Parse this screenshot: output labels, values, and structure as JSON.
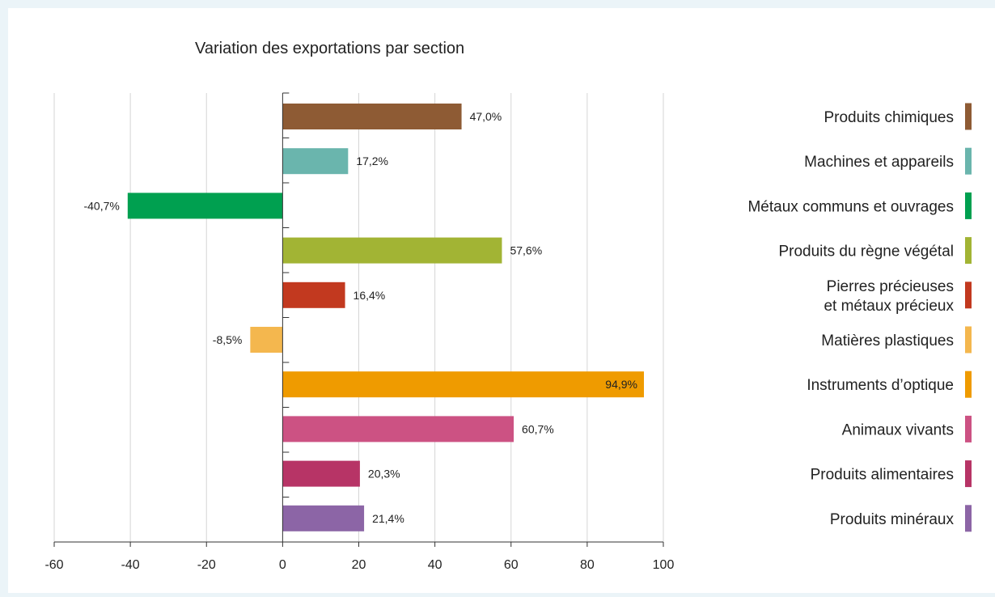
{
  "chart_data": {
    "type": "bar",
    "orientation": "horizontal",
    "title": "Variation des exportations par section",
    "xlabel": "",
    "ylabel": "",
    "xlim": [
      -60,
      100
    ],
    "x_ticks": [
      -60,
      -40,
      -20,
      0,
      20,
      40,
      60,
      80,
      100
    ],
    "grid": "vertical",
    "legend_position": "right",
    "categories": [
      "Produits chimiques",
      "Machines et appareils",
      "Métaux communs et ouvrages",
      "Produits du règne végétal",
      "Pierres précieuses et métaux précieux",
      "Matières plastiques",
      "Instruments d’optique",
      "Animaux vivants",
      "Produits alimentaires",
      "Produits minéraux"
    ],
    "legend_lines": [
      [
        "Produits chimiques"
      ],
      [
        "Machines et appareils"
      ],
      [
        "Métaux communs et ouvrages"
      ],
      [
        "Produits du règne végétal"
      ],
      [
        "Pierres précieuses",
        "et métaux précieux"
      ],
      [
        "Matières plastiques"
      ],
      [
        "Instruments d’optique"
      ],
      [
        "Animaux vivants"
      ],
      [
        "Produits alimentaires"
      ],
      [
        "Produits minéraux"
      ]
    ],
    "values": [
      47.0,
      17.2,
      -40.7,
      57.6,
      16.4,
      -8.5,
      94.9,
      60.7,
      20.3,
      21.4
    ],
    "value_labels": [
      "47,0%",
      "17,2%",
      "-40,7%",
      "57,6%",
      "16,4%",
      "-8,5%",
      "94,9%",
      "60,7%",
      "20,3%",
      "21,4%"
    ],
    "colors": [
      "#8e5b34",
      "#6ab5ad",
      "#00a050",
      "#a2b434",
      "#c2391f",
      "#f4b74e",
      "#ef9b00",
      "#cc5283",
      "#b73466",
      "#8c65a6"
    ]
  }
}
